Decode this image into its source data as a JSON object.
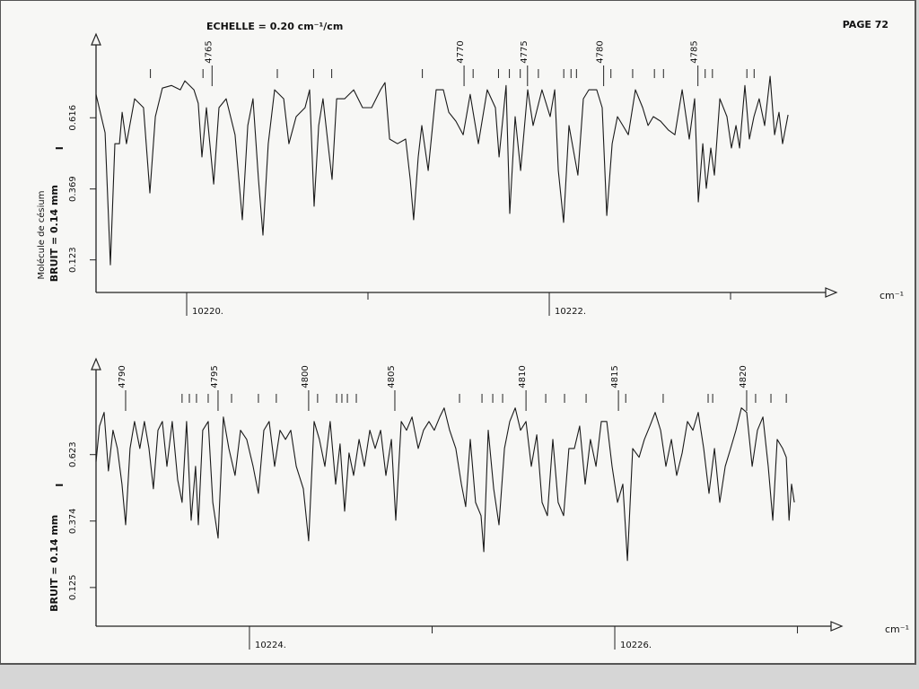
{
  "header": {
    "scale": "ECHELLE = 0.20 cm⁻¹/cm",
    "page": "PAGE 72",
    "side_label": "Molécule de césium"
  },
  "chart_data": [
    {
      "type": "line",
      "ylabel": "BRUIT = 0.14 mm",
      "intensity_symbol": "I",
      "xlabel": "cm⁻¹",
      "color": "#1a1a1a",
      "xlim": [
        10219.5,
        10223.584
      ],
      "ylim": [
        0.01,
        0.9
      ],
      "xticks": [
        {
          "value": 10220,
          "label": "10220."
        },
        {
          "value": 10221,
          "label": null
        },
        {
          "value": 10222,
          "label": "10222."
        },
        {
          "value": 10223,
          "label": null
        }
      ],
      "yticks": [
        0.123,
        0.369,
        0.616
      ],
      "assignments": [
        {
          "x": 10220.14,
          "label": "4765"
        },
        {
          "x": 10221.53,
          "label": "4770"
        },
        {
          "x": 10221.88,
          "label": "4775"
        },
        {
          "x": 10222.3,
          "label": "4780"
        },
        {
          "x": 10222.82,
          "label": "4785"
        }
      ],
      "line_marks": [
        10219.8,
        10220.09,
        10220.5,
        10220.7,
        10220.8,
        10221.3,
        10221.58,
        10221.72,
        10221.78,
        10221.84,
        10221.94,
        10222.08,
        10222.12,
        10222.15,
        10222.34,
        10222.46,
        10222.58,
        10222.63,
        10222.86,
        10222.9,
        10223.09,
        10223.13
      ],
      "x": [
        10219.5,
        10219.55,
        10219.579,
        10219.604,
        10219.629,
        10219.644,
        10219.668,
        10219.713,
        10219.762,
        10219.797,
        10219.827,
        10219.866,
        10219.916,
        10219.965,
        10219.99,
        10220.04,
        10220.064,
        10220.084,
        10220.109,
        10220.149,
        10220.178,
        10220.218,
        10220.267,
        10220.307,
        10220.337,
        10220.366,
        10220.396,
        10220.421,
        10220.45,
        10220.485,
        10220.535,
        10220.564,
        10220.604,
        10220.653,
        10220.678,
        10220.703,
        10220.728,
        10220.752,
        10220.782,
        10220.802,
        10220.827,
        10220.871,
        10220.921,
        10220.97,
        10221.02,
        10221.069,
        10221.094,
        10221.119,
        10221.163,
        10221.208,
        10221.233,
        10221.252,
        10221.277,
        10221.297,
        10221.332,
        10221.376,
        10221.416,
        10221.446,
        10221.485,
        10221.525,
        10221.564,
        10221.609,
        10221.658,
        10221.703,
        10221.723,
        10221.762,
        10221.782,
        10221.812,
        10221.842,
        10221.881,
        10221.911,
        10221.96,
        10222.005,
        10222.03,
        10222.05,
        10222.079,
        10222.109,
        10222.158,
        10222.188,
        10222.218,
        10222.262,
        10222.292,
        10222.317,
        10222.347,
        10222.376,
        10222.406,
        10222.436,
        10222.475,
        10222.515,
        10222.545,
        10222.574,
        10222.614,
        10222.658,
        10222.693,
        10222.733,
        10222.772,
        10222.802,
        10222.822,
        10222.847,
        10222.866,
        10222.891,
        10222.911,
        10222.941,
        10222.98,
        10223.005,
        10223.03,
        10223.05,
        10223.079,
        10223.104,
        10223.129,
        10223.158,
        10223.188,
        10223.218,
        10223.243,
        10223.267,
        10223.287,
        10223.317
      ],
      "values": [
        0.697,
        0.564,
        0.106,
        0.526,
        0.526,
        0.635,
        0.526,
        0.682,
        0.651,
        0.355,
        0.62,
        0.719,
        0.728,
        0.713,
        0.744,
        0.713,
        0.666,
        0.48,
        0.651,
        0.386,
        0.651,
        0.682,
        0.557,
        0.262,
        0.589,
        0.682,
        0.402,
        0.209,
        0.526,
        0.713,
        0.682,
        0.526,
        0.62,
        0.651,
        0.713,
        0.309,
        0.589,
        0.682,
        0.511,
        0.402,
        0.682,
        0.682,
        0.713,
        0.651,
        0.651,
        0.713,
        0.738,
        0.542,
        0.526,
        0.542,
        0.402,
        0.262,
        0.48,
        0.589,
        0.433,
        0.713,
        0.713,
        0.635,
        0.604,
        0.557,
        0.697,
        0.526,
        0.713,
        0.651,
        0.48,
        0.728,
        0.284,
        0.62,
        0.433,
        0.713,
        0.589,
        0.713,
        0.62,
        0.713,
        0.433,
        0.253,
        0.589,
        0.417,
        0.682,
        0.713,
        0.713,
        0.651,
        0.277,
        0.526,
        0.62,
        0.589,
        0.557,
        0.713,
        0.651,
        0.589,
        0.62,
        0.604,
        0.573,
        0.557,
        0.713,
        0.542,
        0.682,
        0.324,
        0.526,
        0.371,
        0.511,
        0.417,
        0.682,
        0.62,
        0.511,
        0.589,
        0.511,
        0.728,
        0.542,
        0.62,
        0.682,
        0.589,
        0.76,
        0.557,
        0.635,
        0.526,
        0.626
      ]
    },
    {
      "type": "line",
      "ylabel": "BRUIT = 0.14 mm",
      "intensity_symbol": "I",
      "xlabel": "cm⁻¹",
      "color": "#1a1a1a",
      "xlim": [
        10223.16,
        10227.243
      ],
      "ylim": [
        -0.02,
        0.975
      ],
      "xticks": [
        {
          "value": 10224,
          "label": "10224."
        },
        {
          "value": 10225,
          "label": null
        },
        {
          "value": 10226,
          "label": "10226."
        },
        {
          "value": 10227,
          "label": null
        }
      ],
      "yticks": [
        0.125,
        0.374,
        0.623
      ],
      "assignments": [
        {
          "x": 10223.322,
          "label": "4790"
        },
        {
          "x": 10223.828,
          "label": "4795"
        },
        {
          "x": 10224.324,
          "label": "4800"
        },
        {
          "x": 10224.796,
          "label": "4805"
        },
        {
          "x": 10225.514,
          "label": "4810"
        },
        {
          "x": 10226.02,
          "label": "4815"
        },
        {
          "x": 10226.722,
          "label": "4820"
        }
      ],
      "line_marks": [
        10223.631,
        10223.671,
        10223.71,
        10223.774,
        10223.902,
        10224.049,
        10224.147,
        10224.373,
        10224.477,
        10224.506,
        10224.536,
        10224.585,
        10225.15,
        10225.273,
        10225.332,
        10225.386,
        10225.622,
        10225.725,
        10225.843,
        10226.06,
        10226.265,
        10226.511,
        10226.536,
        10226.771,
        10226.855,
        10226.939
      ],
      "x": [
        10223.16,
        10223.179,
        10223.204,
        10223.228,
        10223.253,
        10223.277,
        10223.302,
        10223.322,
        10223.346,
        10223.371,
        10223.4,
        10223.425,
        10223.45,
        10223.474,
        10223.499,
        10223.523,
        10223.548,
        10223.577,
        10223.607,
        10223.631,
        10223.656,
        10223.681,
        10223.705,
        10223.72,
        10223.744,
        10223.774,
        10223.799,
        10223.828,
        10223.857,
        10223.887,
        10223.921,
        10223.951,
        10223.985,
        10224.02,
        10224.049,
        10224.079,
        10224.108,
        10224.138,
        10224.167,
        10224.197,
        10224.226,
        10224.256,
        10224.295,
        10224.324,
        10224.354,
        10224.383,
        10224.413,
        10224.442,
        10224.472,
        10224.496,
        10224.521,
        10224.545,
        10224.57,
        10224.6,
        10224.629,
        10224.659,
        10224.688,
        10224.718,
        10224.747,
        10224.777,
        10224.801,
        10224.831,
        10224.86,
        10224.89,
        10224.924,
        10224.953,
        10224.983,
        10225.012,
        10225.042,
        10225.066,
        10225.096,
        10225.13,
        10225.16,
        10225.184,
        10225.209,
        10225.238,
        10225.268,
        10225.283,
        10225.307,
        10225.337,
        10225.366,
        10225.396,
        10225.425,
        10225.455,
        10225.484,
        10225.514,
        10225.543,
        10225.573,
        10225.602,
        10225.631,
        10225.661,
        10225.69,
        10225.72,
        10225.749,
        10225.779,
        10225.808,
        10225.838,
        10225.867,
        10225.897,
        10225.926,
        10225.956,
        10225.985,
        10226.015,
        10226.044,
        10226.069,
        10226.098,
        10226.133,
        10226.162,
        10226.192,
        10226.221,
        10226.251,
        10226.28,
        10226.31,
        10226.339,
        10226.369,
        10226.398,
        10226.428,
        10226.457,
        10226.487,
        10226.516,
        10226.546,
        10226.575,
        10226.605,
        10226.634,
        10226.663,
        10226.693,
        10226.722,
        10226.752,
        10226.781,
        10226.811,
        10226.84,
        10226.865,
        10226.889,
        10226.919,
        10226.939,
        10226.954,
        10226.968,
        10226.983
      ],
      "values": [
        0.596,
        0.73,
        0.781,
        0.562,
        0.714,
        0.646,
        0.512,
        0.36,
        0.646,
        0.747,
        0.646,
        0.747,
        0.646,
        0.495,
        0.714,
        0.747,
        0.579,
        0.747,
        0.528,
        0.444,
        0.747,
        0.377,
        0.579,
        0.36,
        0.714,
        0.747,
        0.444,
        0.31,
        0.764,
        0.646,
        0.545,
        0.714,
        0.68,
        0.579,
        0.478,
        0.714,
        0.747,
        0.579,
        0.714,
        0.68,
        0.714,
        0.579,
        0.495,
        0.3,
        0.747,
        0.68,
        0.579,
        0.747,
        0.512,
        0.663,
        0.411,
        0.629,
        0.545,
        0.68,
        0.579,
        0.714,
        0.646,
        0.714,
        0.545,
        0.68,
        0.377,
        0.747,
        0.714,
        0.764,
        0.646,
        0.714,
        0.747,
        0.714,
        0.764,
        0.798,
        0.714,
        0.646,
        0.512,
        0.428,
        0.68,
        0.444,
        0.394,
        0.259,
        0.714,
        0.495,
        0.36,
        0.646,
        0.747,
        0.798,
        0.714,
        0.747,
        0.579,
        0.697,
        0.444,
        0.394,
        0.68,
        0.444,
        0.394,
        0.646,
        0.646,
        0.73,
        0.512,
        0.68,
        0.579,
        0.747,
        0.747,
        0.579,
        0.444,
        0.512,
        0.226,
        0.646,
        0.613,
        0.68,
        0.73,
        0.781,
        0.714,
        0.579,
        0.68,
        0.545,
        0.629,
        0.747,
        0.714,
        0.781,
        0.646,
        0.478,
        0.646,
        0.444,
        0.579,
        0.646,
        0.714,
        0.798,
        0.781,
        0.579,
        0.714,
        0.764,
        0.579,
        0.377,
        0.68,
        0.646,
        0.613,
        0.377,
        0.512,
        0.444
      ]
    }
  ]
}
